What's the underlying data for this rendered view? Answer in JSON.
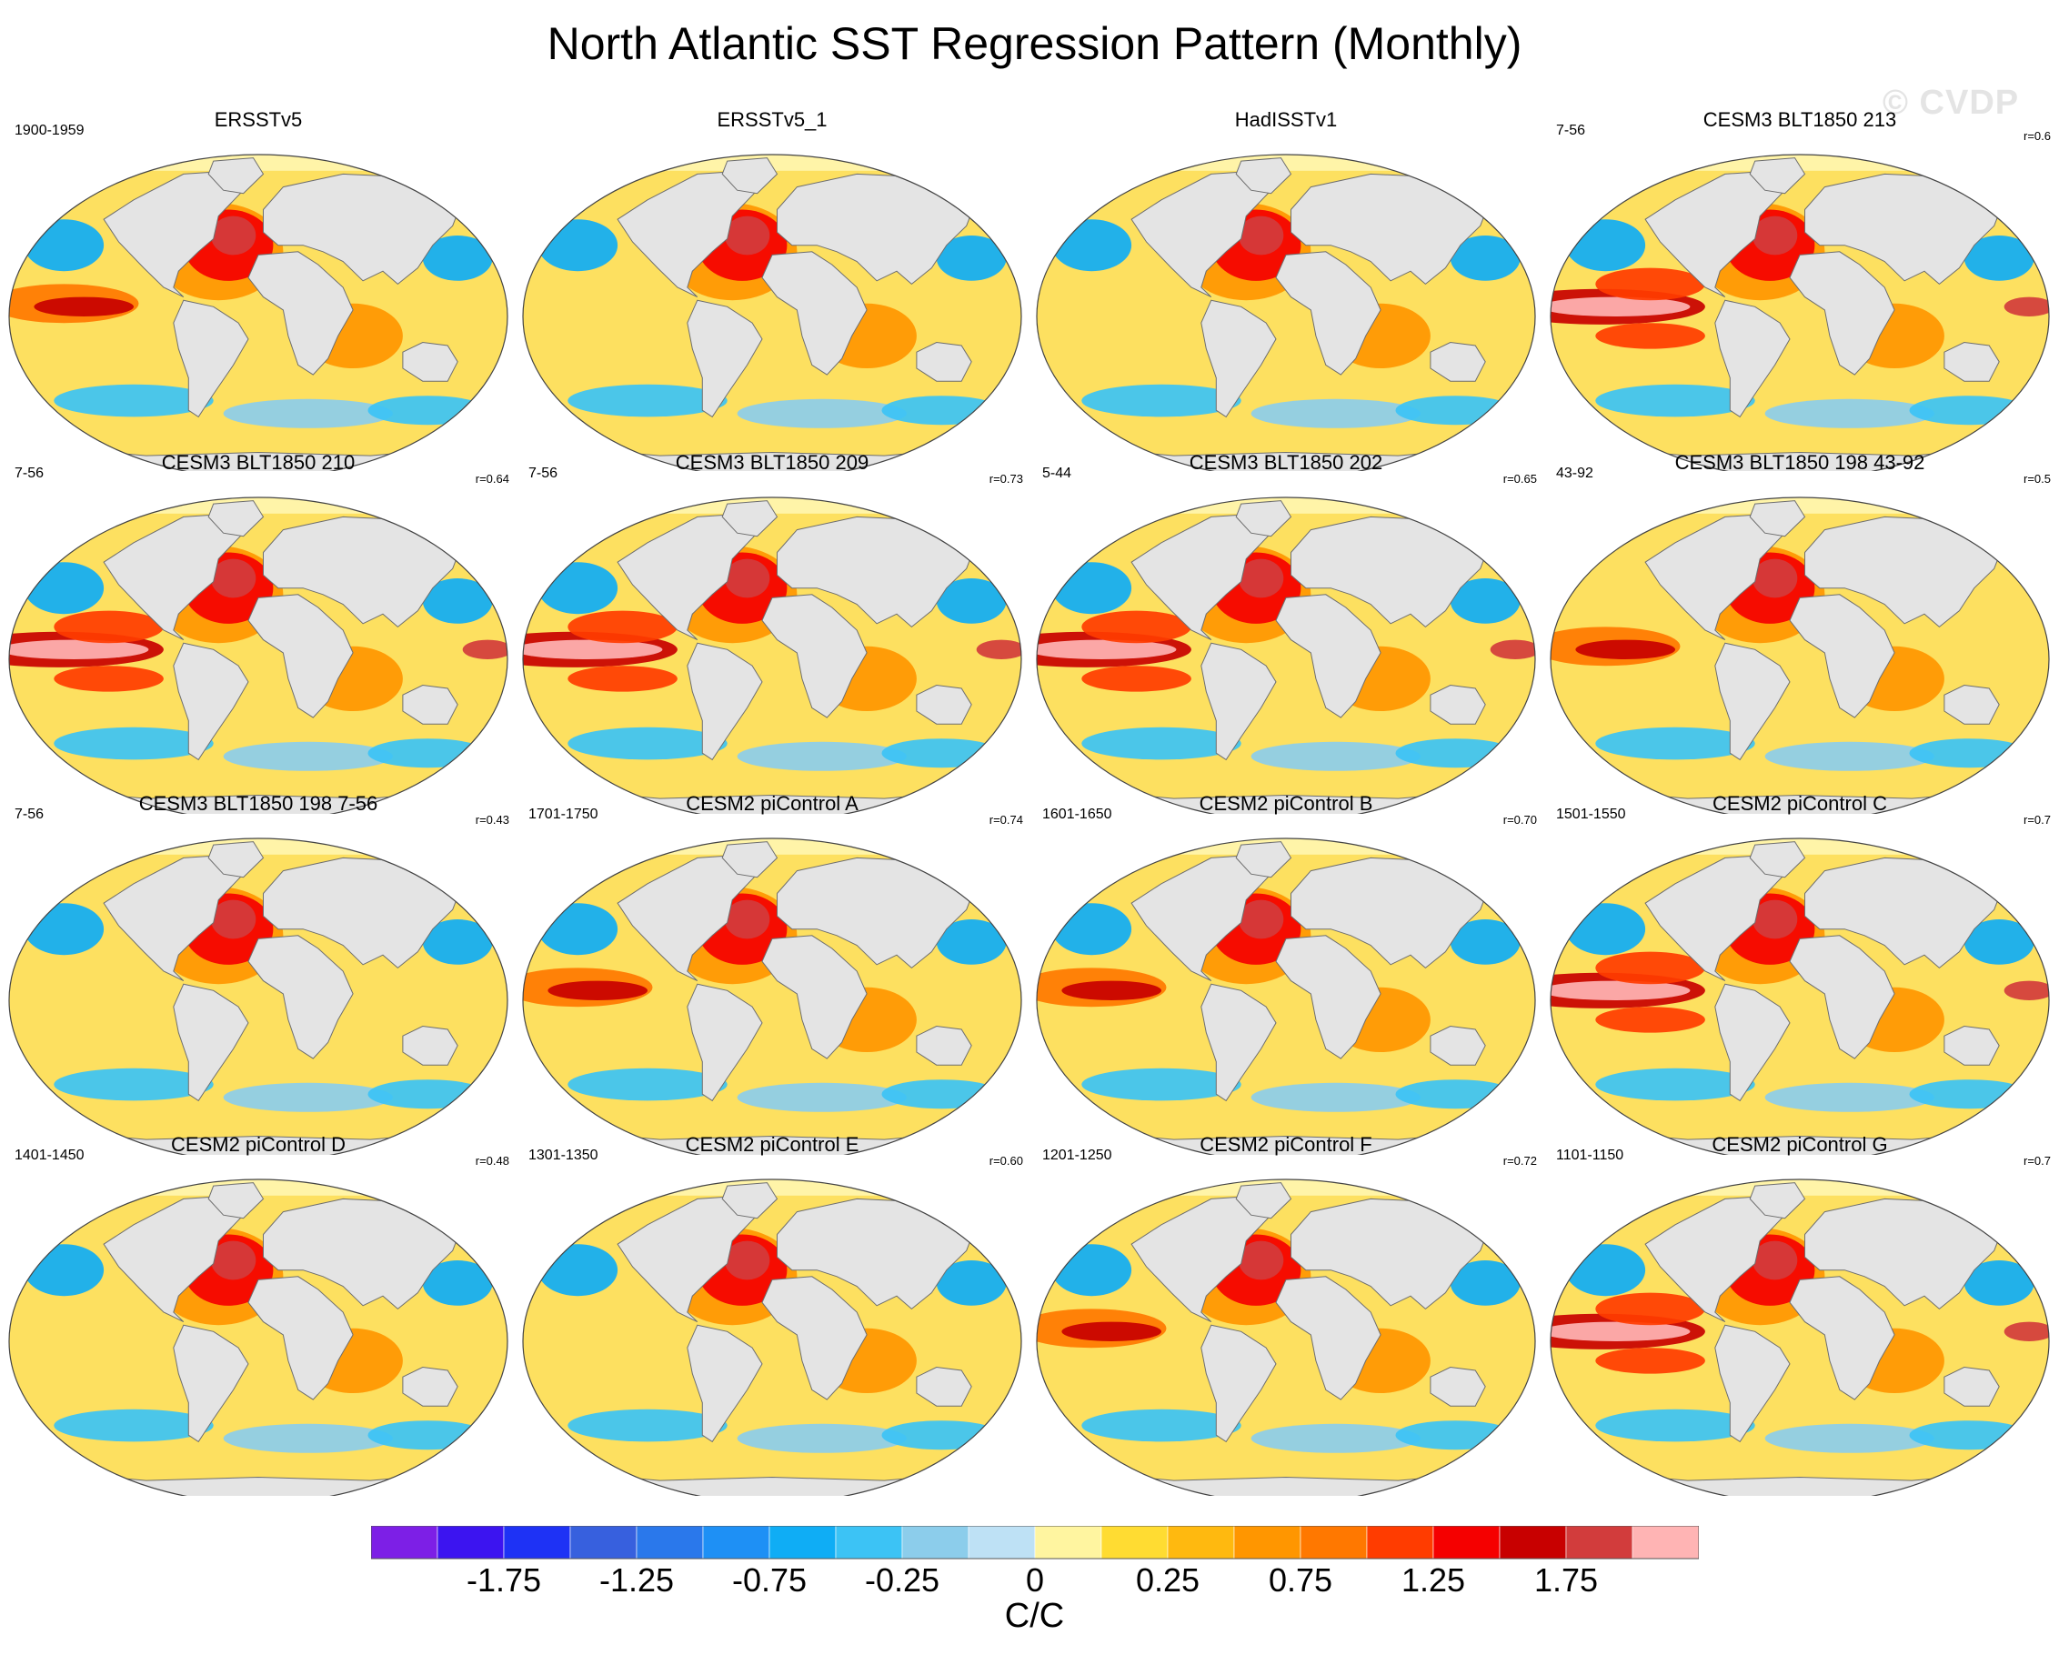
{
  "figure": {
    "title": "North Atlantic SST Regression Pattern (Monthly)",
    "watermark": "© CVDP",
    "colors": {
      "ocean_base": "#fde060",
      "land": "#e4e4e4",
      "coast": "#6e6e6e",
      "sea_ice": "#fff4a8",
      "border": "#444444"
    }
  },
  "panels": [
    {
      "title": "ERSSTv5",
      "time_range": "1900-1959",
      "correlation": "",
      "style": "obs"
    },
    {
      "title": "ERSSTv5_1",
      "time_range": "",
      "correlation": "",
      "style": "obs_cool"
    },
    {
      "title": "HadISSTv1",
      "time_range": "",
      "correlation": "",
      "style": "obs_noisy"
    },
    {
      "title": "CESM3 BLT1850 213",
      "time_range": "7-56",
      "correlation": "r=0.6",
      "style": "enso"
    },
    {
      "title": "CESM3 BLT1850 210",
      "time_range": "7-56",
      "correlation": "r=0.64",
      "style": "enso"
    },
    {
      "title": "CESM3 BLT1850 209",
      "time_range": "7-56",
      "correlation": "r=0.73",
      "style": "enso"
    },
    {
      "title": "CESM3 BLT1850 202",
      "time_range": "5-44",
      "correlation": "r=0.65",
      "style": "enso"
    },
    {
      "title": "CESM3 BLT1850 198 43-92",
      "time_range": "43-92",
      "correlation": "r=0.5",
      "style": "warm"
    },
    {
      "title": "CESM3 BLT1850 198 7-56",
      "time_range": "7-56",
      "correlation": "r=0.43",
      "style": "noisy"
    },
    {
      "title": "CESM2 piControl A",
      "time_range": "1701-1750",
      "correlation": "r=0.74",
      "style": "pi"
    },
    {
      "title": "CESM2 piControl B",
      "time_range": "1601-1650",
      "correlation": "r=0.70",
      "style": "pi"
    },
    {
      "title": "CESM2 piControl C",
      "time_range": "1501-1550",
      "correlation": "r=0.7",
      "style": "enso"
    },
    {
      "title": "CESM2 piControl D",
      "time_range": "1401-1450",
      "correlation": "r=0.48",
      "style": "pi_weak"
    },
    {
      "title": "CESM2 piControl E",
      "time_range": "1301-1350",
      "correlation": "r=0.60",
      "style": "pi_weak"
    },
    {
      "title": "CESM2 piControl F",
      "time_range": "1201-1250",
      "correlation": "r=0.72",
      "style": "pi"
    },
    {
      "title": "CESM2 piControl G",
      "time_range": "1101-1150",
      "correlation": "r=0.7",
      "style": "enso"
    }
  ],
  "colorbar": {
    "unit": "C/C",
    "tick_labels": [
      "-1.75",
      "-1.25",
      "-0.75",
      "-0.25",
      "0",
      "0.25",
      "0.75",
      "1.25",
      "1.75"
    ],
    "colors": [
      "#7d1fe6",
      "#3c14f0",
      "#1e32f5",
      "#3760de",
      "#2a78eb",
      "#1e90f5",
      "#0fadf5",
      "#3cc3f5",
      "#8ccdeb",
      "#bee1f5",
      "#fff5a0",
      "#ffdc32",
      "#ffb90f",
      "#ff9600",
      "#ff7800",
      "#ff3c00",
      "#f50000",
      "#c80000",
      "#d23c3c",
      "#ffb4b4"
    ]
  }
}
